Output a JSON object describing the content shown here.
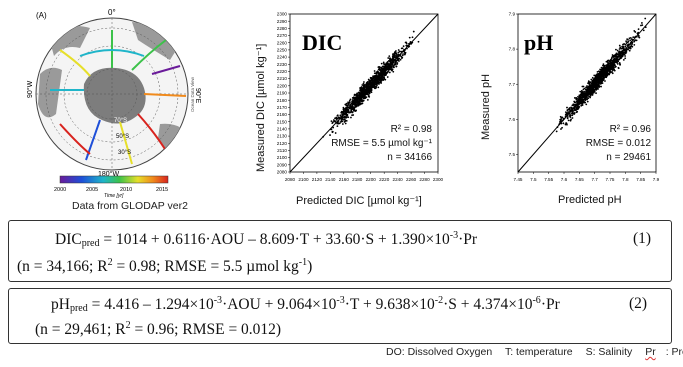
{
  "map": {
    "panel_label": "(A)",
    "lat_labels": [
      "70°S",
      "50°S",
      "30°S"
    ],
    "lon_labels": {
      "top": "0°",
      "left": "90°W",
      "right": "90°E",
      "bottom": "180°W"
    },
    "colorbar": {
      "ticks": [
        "2000",
        "2005",
        "2010",
        "2015"
      ],
      "label": "Time [yr]"
    },
    "credit": "Ocean Data View",
    "caption": "Data from GLODAP ver2"
  },
  "chart_data": [
    {
      "type": "scatter",
      "title": "DIC",
      "xlabel": "Predicted DIC [µmol kg⁻¹]",
      "ylabel": "Measured DIC [µmol kg⁻¹]",
      "xlim": [
        2080,
        2300
      ],
      "ylim": [
        2080,
        2300
      ],
      "x_ticks": [
        "2080",
        "2100",
        "2120",
        "2140",
        "2160",
        "2180",
        "2200",
        "2220",
        "2240",
        "2260",
        "2280",
        "2300"
      ],
      "y_ticks": [
        "2080",
        "2090",
        "2100",
        "2110",
        "2120",
        "2130",
        "2140",
        "2150",
        "2160",
        "2170",
        "2180",
        "2190",
        "2200",
        "2210",
        "2220",
        "2230",
        "2240",
        "2250",
        "2260",
        "2270",
        "2280",
        "2290",
        "2300"
      ],
      "stats": {
        "r2": "R² = 0.98",
        "rmse": "RMSE = 5.5 µmol kg⁻¹",
        "n": "n = 34166"
      },
      "point_cloud": {
        "x_start": 2125,
        "x_end": 2275,
        "spread": 6,
        "n_points": 1200
      },
      "reference_line": "1:1"
    },
    {
      "type": "scatter",
      "title": "pH",
      "xlabel": "Predicted pH",
      "ylabel": "Measured pH",
      "xlim": [
        7.45,
        7.9
      ],
      "ylim": [
        7.45,
        7.9
      ],
      "x_ticks": [
        "7.45",
        "7.5",
        "7.55",
        "7.6",
        "7.65",
        "7.7",
        "7.75",
        "7.8",
        "7.85",
        "7.9"
      ],
      "y_ticks": [
        "7.5",
        "7.6",
        "7.7",
        "7.8",
        "7.9"
      ],
      "stats": {
        "r2": "R² = 0.96",
        "rmse": "RMSE = 0.012",
        "n": "n = 29461"
      },
      "point_cloud": {
        "x_start": 7.55,
        "x_end": 7.88,
        "spread": 0.012,
        "n_points": 1200
      },
      "reference_line": "1:1"
    }
  ],
  "equations": {
    "dic": {
      "lhs": "DIC",
      "lhs_sub": "pred",
      "rhs_a": " = 1014 + 0.6116·AOU – 8.609·T + 33.60·S + 1.390×10",
      "rhs_exp": "-3",
      "rhs_b": "·Pr",
      "number": "(1)",
      "stats_a": "(n = 34,166; R",
      "stats_exp": "2",
      "stats_b": " = 0.98; RMSE = 5.5 µmol kg",
      "stats_exp2": "-1",
      "stats_c": ")"
    },
    "ph": {
      "lhs": "pH",
      "lhs_sub": "pred",
      "rhs_a": " = 4.416 – 1.294×10",
      "rhs_exp1": "-3",
      "rhs_b": "·AOU + 9.064×10",
      "rhs_exp2": "-3",
      "rhs_c": "·T + 9.638×10",
      "rhs_exp3": "-2",
      "rhs_d": "·S + 4.374×10",
      "rhs_exp4": "-6",
      "rhs_e": "·Pr",
      "number": "(2)",
      "stats_a": "(n = 29,461; R",
      "stats_exp": "2",
      "stats_b": " = 0.96; RMSE = 0.012)"
    }
  },
  "legend": {
    "do": "DO: Dissolved Oxygen",
    "t": "T: temperature",
    "s": "S: Salinity",
    "pr_abbr": "Pr",
    "pr_rest": ": Pressure"
  },
  "colors": {
    "ocean": "#f4f4f4",
    "land": "#9a9a9a",
    "antarctica": "#7d7d7d",
    "points": "#000000"
  }
}
